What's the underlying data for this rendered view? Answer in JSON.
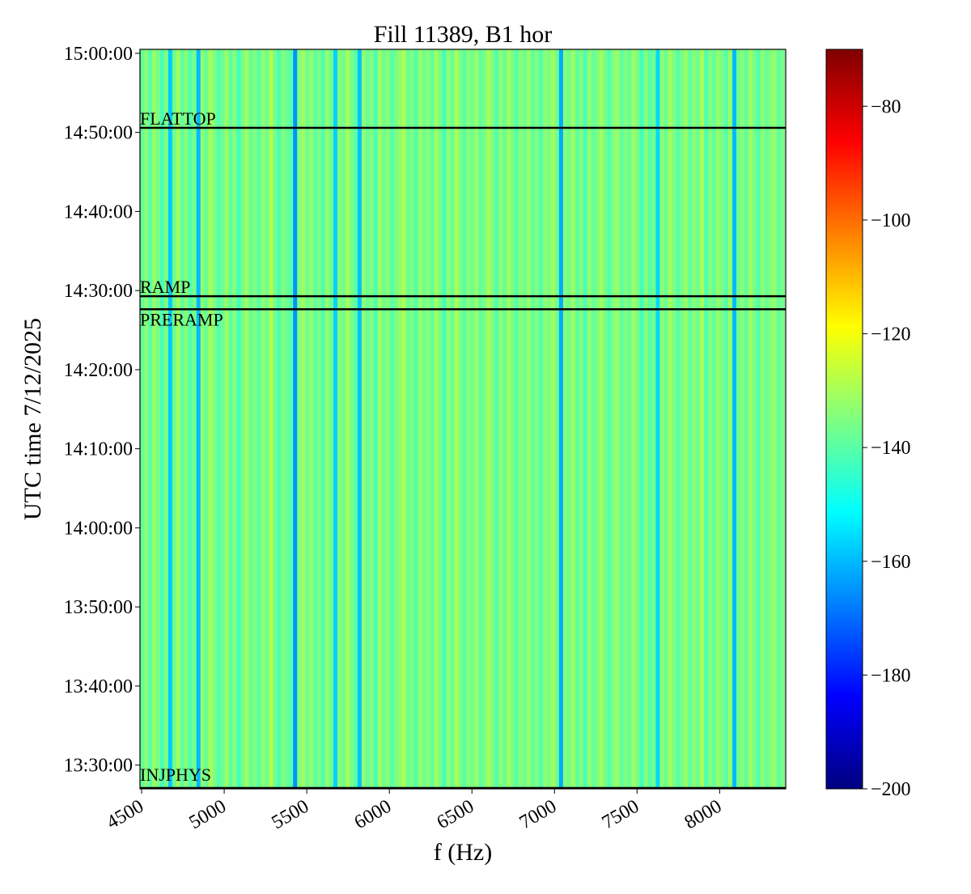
{
  "chart_data": {
    "type": "heatmap",
    "title": "Fill 11389, B1 hor",
    "xlabel": "f (Hz)",
    "ylabel": "UTC time 7/12/2025",
    "xlim": [
      4490,
      8400
    ],
    "ylim": [
      "13:27:00",
      "15:00:30"
    ],
    "x_ticks": [
      4500,
      5000,
      5500,
      6000,
      6500,
      7000,
      7500,
      8000
    ],
    "y_ticks": [
      "13:30:00",
      "13:40:00",
      "13:50:00",
      "14:00:00",
      "14:10:00",
      "14:20:00",
      "14:30:00",
      "14:40:00",
      "14:50:00",
      "15:00:00"
    ],
    "colormap": "jet",
    "color_range": [
      -200,
      -70
    ],
    "colorbar_ticks": [
      -80,
      -100,
      -120,
      -140,
      -160,
      -180,
      -200
    ],
    "grid": false,
    "spectrum_note_free": true,
    "frequency_bins": {
      "start_hz": 4490,
      "step_hz": 24.4,
      "values_db": [
        -138,
        -134,
        -140,
        -132,
        -136,
        -142,
        -135,
        -158,
        -137,
        -131,
        -139,
        -134,
        -141,
        -136,
        -160,
        -133,
        -138,
        -130,
        -135,
        -141,
        -137,
        -132,
        -139,
        -134,
        -143,
        -136,
        -131,
        -138,
        -135,
        -140,
        -133,
        -137,
        -129,
        -136,
        -142,
        -134,
        -138,
        -140,
        -165,
        -135,
        -131,
        -137,
        -133,
        -139,
        -136,
        -141,
        -132,
        -138,
        -157,
        -134,
        -137,
        -130,
        -136,
        -140,
        -159,
        -133,
        -138,
        -135,
        -142,
        -131,
        -137,
        -134,
        -140,
        -136,
        -133,
        -129,
        -138,
        -135,
        -141,
        -132,
        -137,
        -134,
        -139,
        -131,
        -136,
        -143,
        -133,
        -138,
        -130,
        -135,
        -140,
        -134,
        -137,
        -132,
        -139,
        -136,
        -130,
        -135,
        -141,
        -133,
        -138,
        -131,
        -136,
        -140,
        -134,
        -137,
        -132,
        -139,
        -135,
        -141,
        -133,
        -136,
        -130,
        -138,
        -162,
        -134,
        -137,
        -131,
        -139,
        -135,
        -142,
        -133,
        -138,
        -136,
        -130,
        -137,
        -141,
        -134,
        -132,
        -139,
        -135,
        -138,
        -131,
        -136,
        -143,
        -134,
        -140,
        -137,
        -156,
        -133,
        -138,
        -131,
        -135,
        -140,
        -136,
        -132,
        -139,
        -134,
        -137,
        -130,
        -141,
        -135,
        -138,
        -133,
        -136,
        -140,
        -132,
        -160,
        -137,
        -134,
        -139,
        -131,
        -136,
        -141,
        -133,
        -138,
        -135,
        -132,
        -139,
        -136
      ]
    },
    "events": [
      {
        "label": "FLATTOP",
        "time": "14:50:35"
      },
      {
        "label": "RAMP",
        "time": "14:29:17"
      },
      {
        "label": "PRERAMP",
        "time": "14:27:38"
      },
      {
        "label": "INJPHYS",
        "time": "13:26:55"
      }
    ]
  }
}
